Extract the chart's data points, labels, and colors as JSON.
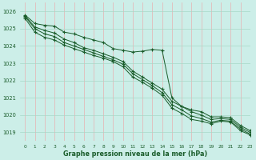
{
  "title": "Graphe pression niveau de la mer (hPa)",
  "background_color": "#cceee8",
  "grid_color_x": "#e8b0b0",
  "grid_color_y": "#a8d8c8",
  "line_color": "#1a5c2a",
  "xlim": [
    -0.5,
    23
  ],
  "ylim": [
    1018.5,
    1026.5
  ],
  "yticks": [
    1019,
    1020,
    1021,
    1022,
    1023,
    1024,
    1025,
    1026
  ],
  "xticks": [
    0,
    1,
    2,
    3,
    4,
    5,
    6,
    7,
    8,
    9,
    10,
    11,
    12,
    13,
    14,
    15,
    16,
    17,
    18,
    19,
    20,
    21,
    22,
    23
  ],
  "series": [
    [
      1025.8,
      1025.3,
      1025.2,
      1025.15,
      1024.8,
      1024.7,
      1024.5,
      1024.35,
      1024.2,
      1023.85,
      1023.75,
      1023.65,
      1023.7,
      1023.8,
      1023.75,
      1021.0,
      1020.5,
      1020.3,
      1020.2,
      1019.9,
      1019.9,
      1019.85,
      1019.4,
      1019.1
    ],
    [
      1025.75,
      1025.1,
      1024.9,
      1024.75,
      1024.4,
      1024.2,
      1023.9,
      1023.75,
      1023.55,
      1023.35,
      1023.1,
      1022.55,
      1022.2,
      1021.85,
      1021.5,
      1020.8,
      1020.5,
      1020.2,
      1020.0,
      1019.75,
      1019.8,
      1019.75,
      1019.3,
      1019.0
    ],
    [
      1025.7,
      1025.0,
      1024.7,
      1024.55,
      1024.2,
      1024.0,
      1023.8,
      1023.6,
      1023.4,
      1023.2,
      1022.95,
      1022.4,
      1022.05,
      1021.7,
      1021.3,
      1020.6,
      1020.3,
      1019.95,
      1019.8,
      1019.6,
      1019.7,
      1019.65,
      1019.2,
      1018.9
    ],
    [
      1025.6,
      1024.8,
      1024.5,
      1024.35,
      1024.05,
      1023.85,
      1023.65,
      1023.45,
      1023.3,
      1023.1,
      1022.8,
      1022.2,
      1021.9,
      1021.55,
      1021.15,
      1020.4,
      1020.1,
      1019.75,
      1019.65,
      1019.5,
      1019.65,
      1019.6,
      1019.1,
      1018.85
    ]
  ]
}
